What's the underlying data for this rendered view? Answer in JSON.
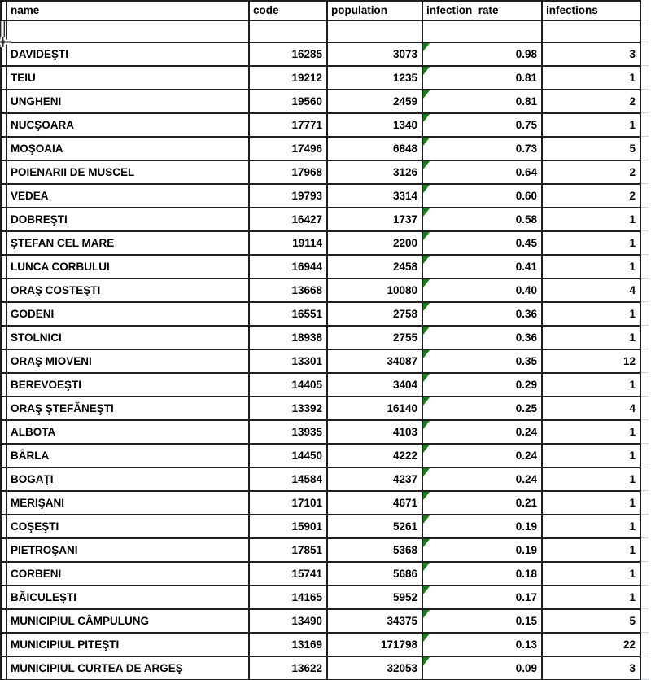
{
  "app": "spreadsheet",
  "colors": {
    "cell_border": "#1f1f1f",
    "text": "#000000",
    "error_indicator_green": "#1a7f1a",
    "faint_gridline": "#ccd4e0",
    "background": "#ffffff"
  },
  "icons": {
    "cell_cursor": "cell-cursor-crosshair-icon",
    "error_indicator": "error-indicator-triangle-icon"
  },
  "table": {
    "columns": [
      "name",
      "code",
      "population",
      "infection_rate",
      "infections"
    ],
    "empty_row_after_header": true,
    "rows": [
      [
        "DAVIDEŞTI",
        "16285",
        "3073",
        "0.98",
        "3"
      ],
      [
        "TEIU",
        "19212",
        "1235",
        "0.81",
        "1"
      ],
      [
        "UNGHENI",
        "19560",
        "2459",
        "0.81",
        "2"
      ],
      [
        "NUCŞOARA",
        "17771",
        "1340",
        "0.75",
        "1"
      ],
      [
        "MOŞOAIA",
        "17496",
        "6848",
        "0.73",
        "5"
      ],
      [
        "POIENARII DE MUSCEL",
        "17968",
        "3126",
        "0.64",
        "2"
      ],
      [
        "VEDEA",
        "19793",
        "3314",
        "0.60",
        "2"
      ],
      [
        "DOBREŞTI",
        "16427",
        "1737",
        "0.58",
        "1"
      ],
      [
        "ŞTEFAN CEL MARE",
        "19114",
        "2200",
        "0.45",
        "1"
      ],
      [
        "LUNCA CORBULUI",
        "16944",
        "2458",
        "0.41",
        "1"
      ],
      [
        "ORAŞ COSTEŞTI",
        "13668",
        "10080",
        "0.40",
        "4"
      ],
      [
        "GODENI",
        "16551",
        "2758",
        "0.36",
        "1"
      ],
      [
        "STOLNICI",
        "18938",
        "2755",
        "0.36",
        "1"
      ],
      [
        "ORAŞ MIOVENI",
        "13301",
        "34087",
        "0.35",
        "12"
      ],
      [
        "BEREVOEŞTI",
        "14405",
        "3404",
        "0.29",
        "1"
      ],
      [
        "ORAŞ ŞTEFĂNEŞTI",
        "13392",
        "16140",
        "0.25",
        "4"
      ],
      [
        "ALBOTA",
        "13935",
        "4103",
        "0.24",
        "1"
      ],
      [
        "BÂRLA",
        "14450",
        "4222",
        "0.24",
        "1"
      ],
      [
        "BOGAŢI",
        "14584",
        "4237",
        "0.24",
        "1"
      ],
      [
        "MERIŞANI",
        "17101",
        "4671",
        "0.21",
        "1"
      ],
      [
        "COŞEŞTI",
        "15901",
        "5261",
        "0.19",
        "1"
      ],
      [
        "PIETROŞANI",
        "17851",
        "5368",
        "0.19",
        "1"
      ],
      [
        "CORBENI",
        "15741",
        "5686",
        "0.18",
        "1"
      ],
      [
        "BĂICULEŞTI",
        "14165",
        "5952",
        "0.17",
        "1"
      ],
      [
        "MUNICIPIUL CÂMPULUNG",
        "13490",
        "34375",
        "0.15",
        "5"
      ],
      [
        "MUNICIPIUL PITEŞTI",
        "13169",
        "171798",
        "0.13",
        "22"
      ],
      [
        "MUNICIPIUL CURTEA DE ARGEŞ",
        "13622",
        "32053",
        "0.09",
        "3"
      ]
    ]
  }
}
